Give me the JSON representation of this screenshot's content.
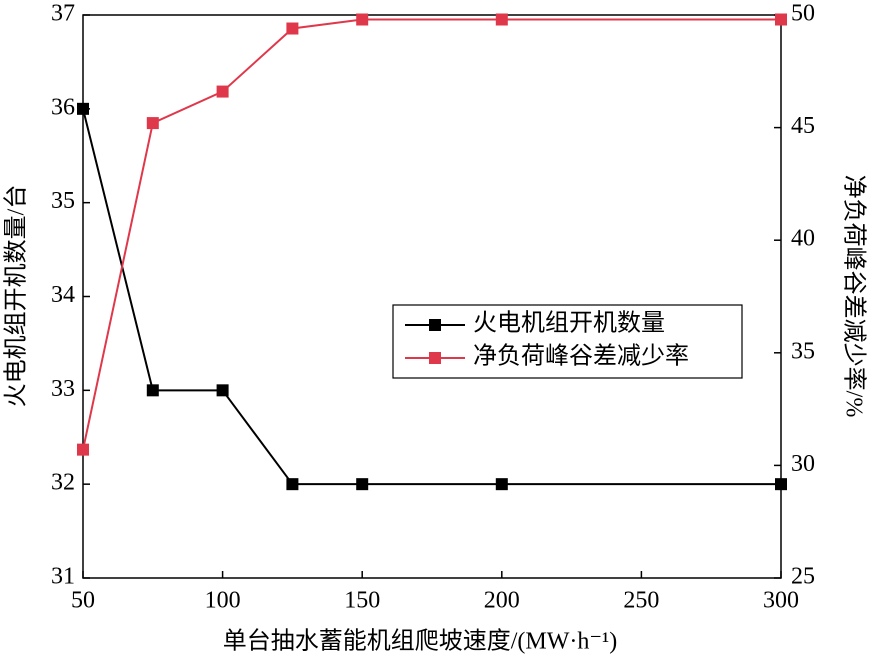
{
  "chart_data": {
    "type": "line",
    "x_label": "单台抽水蓄能机组爬坡速度/(MW·h⁻¹)",
    "y_label": "火电机组开机数量/台",
    "y2_label": "净负荷峰谷差减少率/%",
    "x": [
      50,
      75,
      100,
      125,
      150,
      200,
      300
    ],
    "xlim": [
      50,
      300
    ],
    "xticks": [
      50,
      100,
      150,
      200,
      250,
      300
    ],
    "ylim": [
      31,
      37
    ],
    "yticks": [
      31,
      32,
      33,
      34,
      35,
      36,
      37
    ],
    "y2lim": [
      25,
      50
    ],
    "y2ticks": [
      25,
      30,
      35,
      40,
      45,
      50
    ],
    "legend": "center-right",
    "series": [
      {
        "name": "火电机组开机数量",
        "color": "#000000",
        "values": [
          36,
          33,
          33,
          32,
          32,
          32,
          32
        ]
      },
      {
        "name": "净负荷峰谷差减少率",
        "color": "#e0384b",
        "axis": "y2",
        "values": [
          30.7,
          45.2,
          46.6,
          49.4,
          49.8,
          49.8,
          49.8
        ]
      }
    ]
  }
}
